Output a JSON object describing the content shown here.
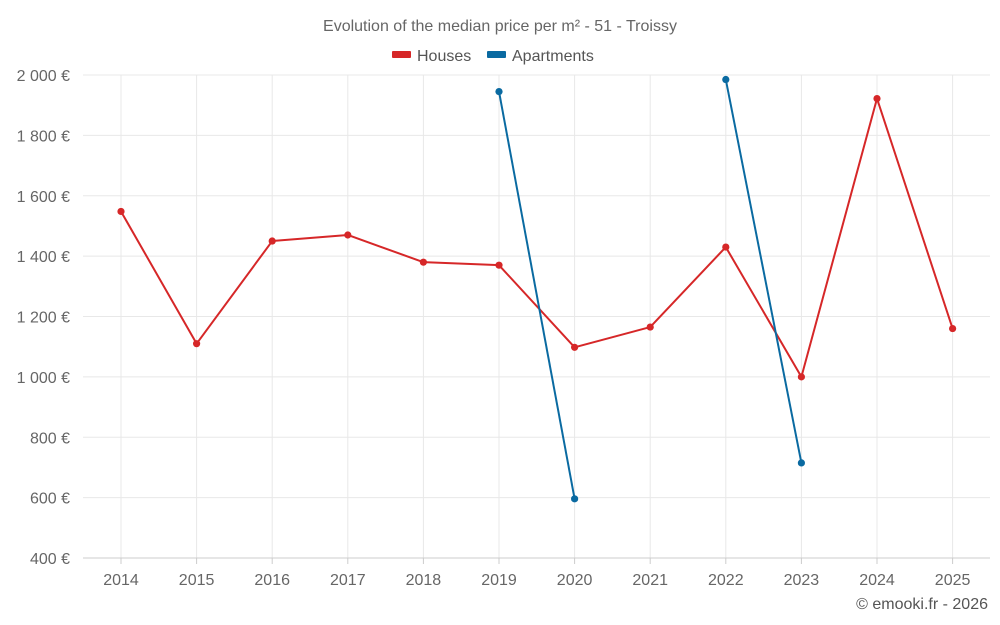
{
  "chart_data": {
    "type": "line",
    "title": "Evolution of the median price per m² - 51 - Troissy",
    "x": [
      "2014",
      "2015",
      "2016",
      "2017",
      "2018",
      "2019",
      "2020",
      "2021",
      "2022",
      "2023",
      "2024",
      "2025"
    ],
    "ylim": [
      400,
      2000
    ],
    "yticks": [
      400,
      600,
      800,
      1000,
      1200,
      1400,
      1600,
      1800,
      2000
    ],
    "ytick_labels": [
      "400 €",
      "600 €",
      "800 €",
      "1 000 €",
      "1 200 €",
      "1 400 €",
      "1 600 €",
      "1 800 €",
      "2 000 €"
    ],
    "grid": true,
    "legend_position": "top-center",
    "series": [
      {
        "name": "Houses",
        "color": "#d62728",
        "values": [
          1548,
          1110,
          1450,
          1470,
          1380,
          1370,
          1098,
          1165,
          1430,
          1000,
          1922,
          1160
        ]
      },
      {
        "name": "Apartments",
        "color": "#0a6aa1",
        "values": [
          null,
          null,
          null,
          null,
          null,
          1945,
          596,
          null,
          1985,
          715,
          null,
          null
        ]
      }
    ]
  },
  "footer": {
    "credit": "© emooki.fr - 2026"
  }
}
